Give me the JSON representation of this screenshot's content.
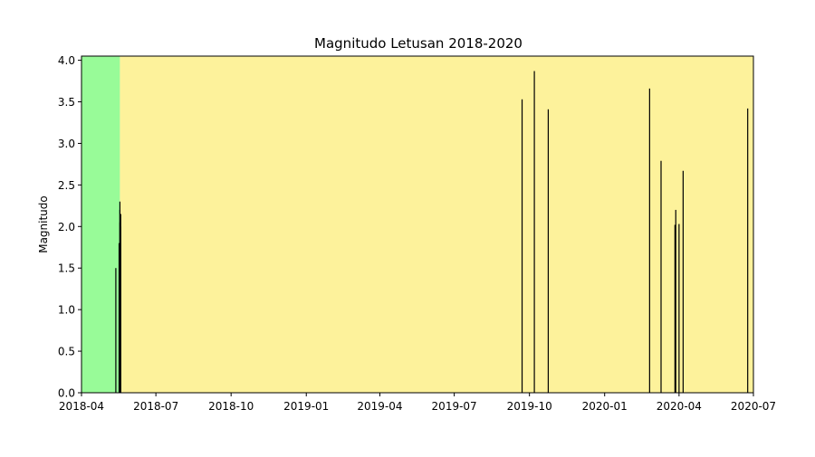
{
  "chart_data": {
    "type": "bar",
    "title": "Magnitudo Letusan 2018-2020",
    "xlabel": "",
    "ylabel": "Magnitudo",
    "ylim": [
      0,
      4.05
    ],
    "xlim": [
      "2018-04-01",
      "2020-07-01"
    ],
    "grid": false,
    "x_ticks": [
      "2018-04",
      "2018-07",
      "2018-10",
      "2019-01",
      "2019-04",
      "2019-07",
      "2019-10",
      "2020-01",
      "2020-04",
      "2020-07"
    ],
    "y_ticks": [
      "0.0",
      "0.5",
      "1.0",
      "1.5",
      "2.0",
      "2.5",
      "3.0",
      "3.5",
      "4.0"
    ],
    "background_periods": [
      {
        "start": "2018-04-01",
        "end": "2018-05-18",
        "color": "#98fb98"
      },
      {
        "start": "2018-05-18",
        "end": "2020-07-01",
        "color": "#fdf29b"
      }
    ],
    "bar_color": "#000000",
    "x": [
      "2018-05-13",
      "2018-05-17",
      "2018-05-18",
      "2018-05-18",
      "2018-05-18",
      "2018-05-19",
      "2018-05-19",
      "2019-09-22",
      "2019-10-07",
      "2019-10-24",
      "2020-02-25",
      "2020-03-10",
      "2020-03-27",
      "2020-03-28",
      "2020-04-01",
      "2020-04-06",
      "2020-06-24"
    ],
    "values": [
      1.5,
      1.8,
      2.05,
      2.3,
      2.2,
      2.15,
      2.0,
      3.53,
      3.87,
      3.41,
      3.66,
      2.79,
      2.02,
      2.2,
      2.03,
      2.67,
      3.42
    ]
  }
}
